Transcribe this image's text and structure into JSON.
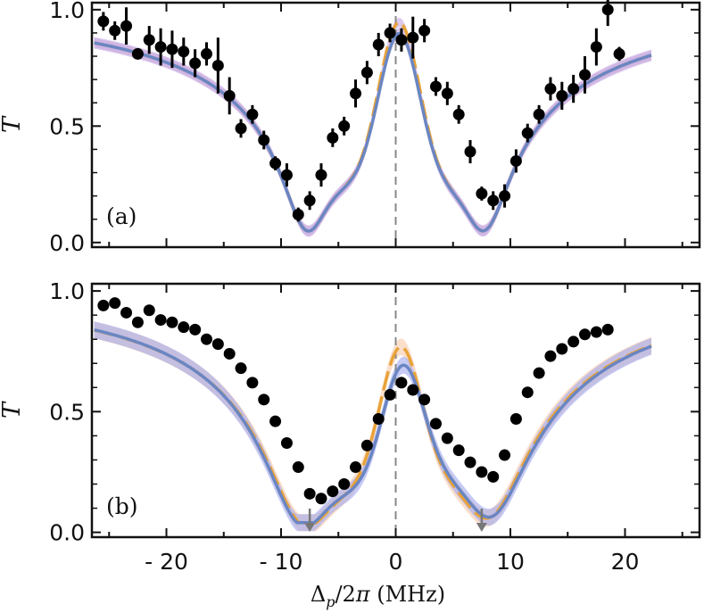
{
  "chart_data": [
    {
      "panel": "(a)",
      "type": "scatter",
      "ylabel": "T",
      "xlim": [
        -26.5,
        26.5
      ],
      "ylim": [
        -0.02,
        1.03
      ],
      "yticks": [
        "0.0",
        "0.5",
        "1.0"
      ],
      "zero_line": "dashed",
      "colors": {
        "orange": "#e8a33a",
        "blue": "#6a86c2",
        "blue_band": "#c7a6e0"
      },
      "points": [
        {
          "x": -25.5,
          "y": 0.95,
          "err": 0.04
        },
        {
          "x": -24.5,
          "y": 0.91,
          "err": 0.04
        },
        {
          "x": -23.5,
          "y": 0.93,
          "err": 0.08
        },
        {
          "x": -22.5,
          "y": 0.81,
          "err": 0.02
        },
        {
          "x": -21.5,
          "y": 0.87,
          "err": 0.06
        },
        {
          "x": -20.5,
          "y": 0.84,
          "err": 0.08
        },
        {
          "x": -19.5,
          "y": 0.83,
          "err": 0.08
        },
        {
          "x": -18.5,
          "y": 0.82,
          "err": 0.06
        },
        {
          "x": -17.5,
          "y": 0.77,
          "err": 0.06
        },
        {
          "x": -16.5,
          "y": 0.81,
          "err": 0.05
        },
        {
          "x": -15.5,
          "y": 0.76,
          "err": 0.12
        },
        {
          "x": -14.5,
          "y": 0.63,
          "err": 0.08
        },
        {
          "x": -13.5,
          "y": 0.49,
          "err": 0.04
        },
        {
          "x": -12.5,
          "y": 0.55,
          "err": 0.04
        },
        {
          "x": -11.5,
          "y": 0.44,
          "err": 0.04
        },
        {
          "x": -10.5,
          "y": 0.34,
          "err": 0.03
        },
        {
          "x": -9.5,
          "y": 0.29,
          "err": 0.05
        },
        {
          "x": -8.5,
          "y": 0.12,
          "err": 0.03
        },
        {
          "x": -7.5,
          "y": 0.18,
          "err": 0.04
        },
        {
          "x": -6.5,
          "y": 0.29,
          "err": 0.05
        },
        {
          "x": -5.5,
          "y": 0.45,
          "err": 0.04
        },
        {
          "x": -4.5,
          "y": 0.5,
          "err": 0.04
        },
        {
          "x": -3.5,
          "y": 0.64,
          "err": 0.06
        },
        {
          "x": -2.5,
          "y": 0.73,
          "err": 0.05
        },
        {
          "x": -1.5,
          "y": 0.85,
          "err": 0.05
        },
        {
          "x": -0.5,
          "y": 0.9,
          "err": 0.04
        },
        {
          "x": 0.5,
          "y": 0.87,
          "err": 0.05
        },
        {
          "x": 1.5,
          "y": 0.88,
          "err": 0.09
        },
        {
          "x": 2.5,
          "y": 0.91,
          "err": 0.05
        },
        {
          "x": 3.5,
          "y": 0.67,
          "err": 0.04
        },
        {
          "x": 4.5,
          "y": 0.64,
          "err": 0.05
        },
        {
          "x": 5.5,
          "y": 0.55,
          "err": 0.04
        },
        {
          "x": 6.5,
          "y": 0.39,
          "err": 0.05
        },
        {
          "x": 7.5,
          "y": 0.21,
          "err": 0.03
        },
        {
          "x": 8.5,
          "y": 0.18,
          "err": 0.04
        },
        {
          "x": 9.5,
          "y": 0.2,
          "err": 0.05
        },
        {
          "x": 10.5,
          "y": 0.35,
          "err": 0.05
        },
        {
          "x": 11.5,
          "y": 0.47,
          "err": 0.04
        },
        {
          "x": 12.5,
          "y": 0.55,
          "err": 0.04
        },
        {
          "x": 13.5,
          "y": 0.66,
          "err": 0.05
        },
        {
          "x": 14.5,
          "y": 0.63,
          "err": 0.06
        },
        {
          "x": 15.5,
          "y": 0.66,
          "err": 0.06
        },
        {
          "x": 16.5,
          "y": 0.72,
          "err": 0.08
        },
        {
          "x": 17.5,
          "y": 0.84,
          "err": 0.08
        },
        {
          "x": 18.5,
          "y": 1.0,
          "err": 0.07
        },
        {
          "x": 19.5,
          "y": 0.81,
          "err": 0.03
        }
      ],
      "models": [
        {
          "color": "orange",
          "style": "dashed",
          "band_width": 0.02,
          "params": {
            "center": 0.3,
            "base": 0.985,
            "width": 8.45,
            "dip_pos": 7.6,
            "dip_depth": 0.93,
            "dip_width": 2.95
          }
        },
        {
          "color": "blue",
          "style": "solid",
          "band_width": 0.025,
          "params": {
            "center": 0.3,
            "base": 0.935,
            "width": 8.45,
            "dip_pos": 7.6,
            "dip_depth": 0.885,
            "dip_width": 2.95
          }
        }
      ]
    },
    {
      "panel": "(b)",
      "type": "scatter",
      "ylabel": "T",
      "xlim": [
        -26.5,
        26.5
      ],
      "ylim": [
        -0.02,
        1.03
      ],
      "yticks": [
        "0.0",
        "0.5",
        "1.0"
      ],
      "xticks": [
        "- 20",
        "- 10",
        "0",
        "10",
        "20"
      ],
      "xtick_values": [
        -20,
        -10,
        0,
        10,
        20
      ],
      "xlabel": "Δp/2π (MHz)",
      "xlabel_parts": {
        "delta": "Δ",
        "sub": "p",
        "rest": "/2",
        "pi": "π",
        "unit": " (MHz)"
      },
      "zero_line": "dashed",
      "arrows_at": [
        -7.5,
        7.5
      ],
      "colors": {
        "orange": "#e8a33a",
        "blue": "#6a86c2",
        "orange_band": "#f9c9a8",
        "blue_band": "#a0a8f0"
      },
      "points": [
        {
          "x": -25.5,
          "y": 0.94
        },
        {
          "x": -24.5,
          "y": 0.95
        },
        {
          "x": -23.5,
          "y": 0.91
        },
        {
          "x": -22.5,
          "y": 0.87
        },
        {
          "x": -21.5,
          "y": 0.92
        },
        {
          "x": -20.5,
          "y": 0.88
        },
        {
          "x": -19.5,
          "y": 0.87
        },
        {
          "x": -18.5,
          "y": 0.85
        },
        {
          "x": -17.5,
          "y": 0.84
        },
        {
          "x": -16.5,
          "y": 0.8
        },
        {
          "x": -15.5,
          "y": 0.78
        },
        {
          "x": -14.5,
          "y": 0.74
        },
        {
          "x": -13.5,
          "y": 0.68
        },
        {
          "x": -12.5,
          "y": 0.62
        },
        {
          "x": -11.5,
          "y": 0.55
        },
        {
          "x": -10.5,
          "y": 0.46
        },
        {
          "x": -9.5,
          "y": 0.37
        },
        {
          "x": -8.5,
          "y": 0.27
        },
        {
          "x": -7.5,
          "y": 0.16
        },
        {
          "x": -6.5,
          "y": 0.14
        },
        {
          "x": -5.5,
          "y": 0.17
        },
        {
          "x": -4.5,
          "y": 0.2
        },
        {
          "x": -3.5,
          "y": 0.27
        },
        {
          "x": -2.5,
          "y": 0.36
        },
        {
          "x": -1.5,
          "y": 0.47
        },
        {
          "x": -0.5,
          "y": 0.57
        },
        {
          "x": 0.5,
          "y": 0.62
        },
        {
          "x": 1.5,
          "y": 0.59
        },
        {
          "x": 2.5,
          "y": 0.55
        },
        {
          "x": 3.5,
          "y": 0.45
        },
        {
          "x": 4.5,
          "y": 0.39
        },
        {
          "x": 5.5,
          "y": 0.34
        },
        {
          "x": 6.5,
          "y": 0.29
        },
        {
          "x": 7.5,
          "y": 0.25
        },
        {
          "x": 8.5,
          "y": 0.23
        },
        {
          "x": 9.5,
          "y": 0.32
        },
        {
          "x": 10.5,
          "y": 0.47
        },
        {
          "x": 11.5,
          "y": 0.58
        },
        {
          "x": 12.5,
          "y": 0.66
        },
        {
          "x": 13.5,
          "y": 0.73
        },
        {
          "x": 14.5,
          "y": 0.76
        },
        {
          "x": 15.5,
          "y": 0.79
        },
        {
          "x": 16.5,
          "y": 0.82
        },
        {
          "x": 17.5,
          "y": 0.83
        },
        {
          "x": 18.5,
          "y": 0.84
        }
      ],
      "models": [
        {
          "color": "orange",
          "style": "dashed",
          "band_width": 0.035,
          "params": {
            "center": 0.4,
            "base": 0.8,
            "width": 8.7,
            "dip_pos": 7.8,
            "dip_depth": 0.26,
            "dip_width": 4.2,
            "asym": 0.09
          }
        },
        {
          "color": "blue",
          "style": "solid",
          "band_width": 0.035,
          "params": {
            "center": 0.6,
            "base": 0.72,
            "width": 8.7,
            "dip_pos": 8.0,
            "dip_depth": 0.2,
            "dip_width": 4.2,
            "asym": 0.11
          }
        }
      ]
    }
  ]
}
